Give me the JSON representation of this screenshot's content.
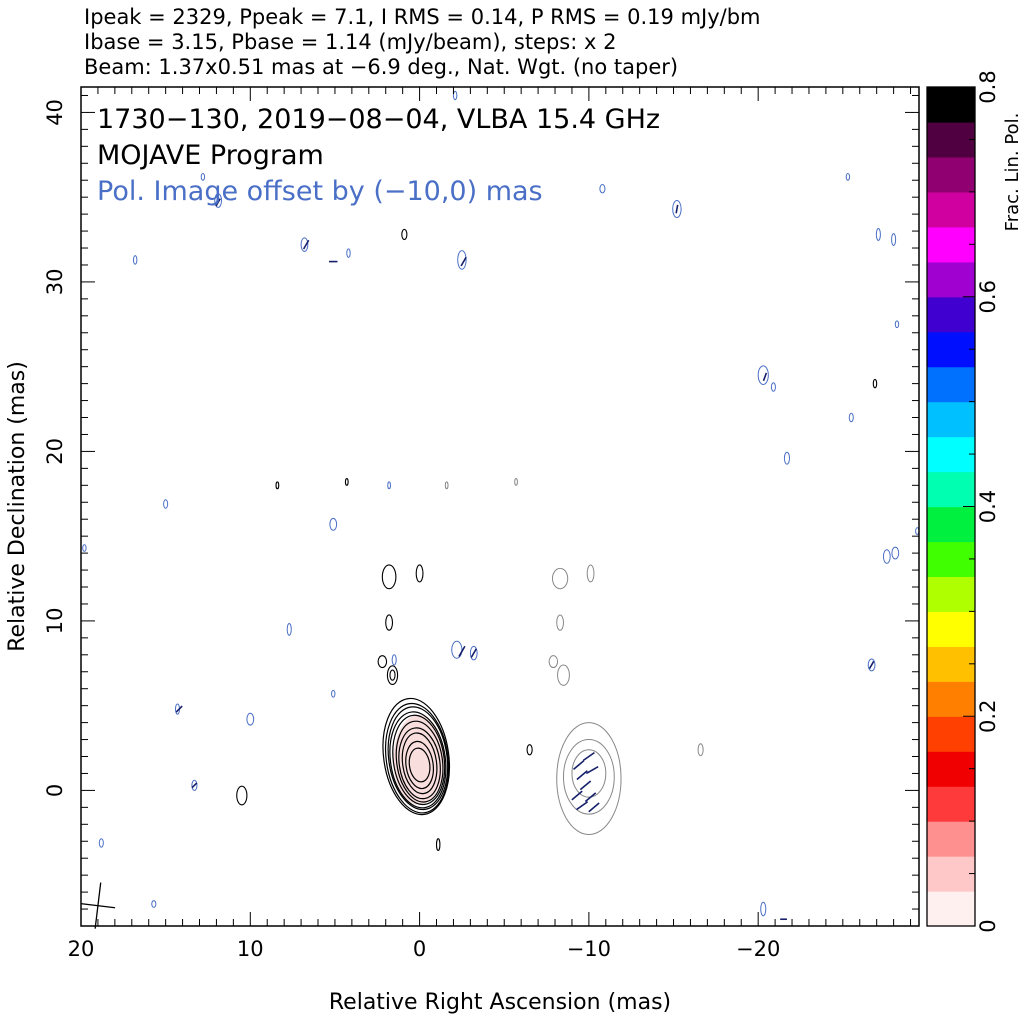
{
  "header": {
    "line1": "Ipeak = 2329, Ppeak = 7.1, I RMS = 0.14, P RMS = 0.19 mJy/bm",
    "line2": "Ibase = 3.15, Pbase = 1.14 (mJy/beam), steps: x 2",
    "line3": "Beam: 1.37x0.51 mas at −6.9 deg., Nat. Wgt. (no taper)"
  },
  "chart_data": {
    "type": "contour",
    "xlabel": "Relative Right Ascension (mas)",
    "ylabel": "Relative Declination (mas)",
    "xlim": [
      20,
      -29.5
    ],
    "ylim": [
      -8,
      41.5
    ],
    "x_ticks": [
      {
        "value": 20,
        "label": "20"
      },
      {
        "value": 10,
        "label": "10"
      },
      {
        "value": 0,
        "label": "0"
      },
      {
        "value": -10,
        "label": "−10"
      },
      {
        "value": -20,
        "label": "−20"
      }
    ],
    "y_ticks": [
      {
        "value": 0,
        "label": "0"
      },
      {
        "value": 10,
        "label": "10"
      },
      {
        "value": 20,
        "label": "20"
      },
      {
        "value": 30,
        "label": "30"
      },
      {
        "value": 40,
        "label": "40"
      }
    ],
    "annotations": [
      {
        "text": "1730−130, 2019−08−04, VLBA 15.4 GHz",
        "color": "#000000"
      },
      {
        "text": "MOJAVE Program",
        "color": "#000000"
      },
      {
        "text": "Pol. Image offset by (−10,0) mas",
        "color": "#4a6fc6"
      }
    ],
    "colorbar": {
      "label": "Frac. Lin. Pol.",
      "range": [
        0,
        0.8
      ],
      "ticks": [
        {
          "value": 0,
          "label": "0"
        },
        {
          "value": 0.2,
          "label": "0.2"
        },
        {
          "value": 0.4,
          "label": "0.4"
        },
        {
          "value": 0.6,
          "label": "0.6"
        },
        {
          "value": 0.8,
          "label": "0.8"
        }
      ],
      "colors": [
        "#fff0f0",
        "#ffc8c8",
        "#ff9090",
        "#ff3a3a",
        "#f00000",
        "#ff4000",
        "#ff8000",
        "#ffc000",
        "#ffff00",
        "#b0ff00",
        "#40ff00",
        "#00f040",
        "#00ffb0",
        "#00ffff",
        "#00c0ff",
        "#0070ff",
        "#0010ff",
        "#4000d0",
        "#a000d0",
        "#ff00ff",
        "#d000a0",
        "#900070",
        "#500040",
        "#000000"
      ]
    },
    "contour_colors": {
      "total_intensity": "#000000",
      "polarized": "#888888",
      "offset_noise": "#4a6fc6"
    },
    "core_contours": [
      {
        "x": 0.0,
        "y": 1.5,
        "rx": 0.6,
        "ry": 1.0,
        "rot": -8
      },
      {
        "x": 0.0,
        "y": 1.5,
        "rx": 0.8,
        "ry": 1.4,
        "rot": -8
      },
      {
        "x": 0.0,
        "y": 1.6,
        "rx": 1.0,
        "ry": 1.8,
        "rot": -8
      },
      {
        "x": 0.0,
        "y": 1.6,
        "rx": 1.2,
        "ry": 2.1,
        "rot": -8
      },
      {
        "x": 0.0,
        "y": 1.7,
        "rx": 1.35,
        "ry": 2.4,
        "rot": -8
      },
      {
        "x": 0.05,
        "y": 1.8,
        "rx": 1.5,
        "ry": 2.65,
        "rot": -8
      },
      {
        "x": 0.1,
        "y": 1.8,
        "rx": 1.62,
        "ry": 2.85,
        "rot": -8
      },
      {
        "x": 0.1,
        "y": 1.9,
        "rx": 1.72,
        "ry": 3.05,
        "rot": -8
      },
      {
        "x": 0.15,
        "y": 1.9,
        "rx": 1.82,
        "ry": 3.25,
        "rot": -8
      },
      {
        "x": 0.2,
        "y": 2.0,
        "rx": 1.92,
        "ry": 3.45,
        "rot": -8
      }
    ],
    "pol_contours": [
      {
        "x": -10.0,
        "y": 1.0,
        "rx": 1.0,
        "ry": 1.4,
        "rot": 0
      },
      {
        "x": -10.0,
        "y": 0.8,
        "rx": 1.5,
        "ry": 2.2,
        "rot": 0
      },
      {
        "x": -10.0,
        "y": 0.7,
        "rx": 1.9,
        "ry": 3.3,
        "rot": 0
      }
    ],
    "black_blobs": [
      {
        "x": 1.8,
        "y": 12.6,
        "rx": 0.4,
        "ry": 0.7
      },
      {
        "x": 0.0,
        "y": 12.8,
        "rx": 0.2,
        "ry": 0.5
      },
      {
        "x": 1.8,
        "y": 9.9,
        "rx": 0.2,
        "ry": 0.45
      },
      {
        "x": 2.2,
        "y": 7.6,
        "rx": 0.25,
        "ry": 0.35
      },
      {
        "x": 1.6,
        "y": 6.8,
        "rx": 0.3,
        "ry": 0.55
      },
      {
        "x": 1.6,
        "y": 6.8,
        "rx": 0.15,
        "ry": 0.3
      },
      {
        "x": 10.5,
        "y": -0.3,
        "rx": 0.3,
        "ry": 0.55
      },
      {
        "x": -6.5,
        "y": 2.4,
        "rx": 0.15,
        "ry": 0.3
      },
      {
        "x": 8.4,
        "y": 18.0,
        "rx": 0.08,
        "ry": 0.2
      },
      {
        "x": 4.3,
        "y": 18.2,
        "rx": 0.08,
        "ry": 0.2
      },
      {
        "x": 0.9,
        "y": 32.8,
        "rx": 0.15,
        "ry": 0.3
      },
      {
        "x": -1.1,
        "y": -3.2,
        "rx": 0.1,
        "ry": 0.35
      },
      {
        "x": -26.9,
        "y": 24.0,
        "rx": 0.1,
        "ry": 0.25
      }
    ],
    "grey_blobs": [
      {
        "x": -8.3,
        "y": 12.5,
        "rx": 0.45,
        "ry": 0.6
      },
      {
        "x": -10.1,
        "y": 12.8,
        "rx": 0.2,
        "ry": 0.5
      },
      {
        "x": -8.3,
        "y": 9.9,
        "rx": 0.2,
        "ry": 0.45
      },
      {
        "x": -7.9,
        "y": 7.6,
        "rx": 0.25,
        "ry": 0.35
      },
      {
        "x": -8.5,
        "y": 6.8,
        "rx": 0.35,
        "ry": 0.6
      },
      {
        "x": -16.6,
        "y": 2.4,
        "rx": 0.15,
        "ry": 0.35
      },
      {
        "x": -1.6,
        "y": 18.0,
        "rx": 0.08,
        "ry": 0.2
      },
      {
        "x": -5.7,
        "y": 18.2,
        "rx": 0.08,
        "ry": 0.2
      }
    ],
    "blue_blobs": [
      {
        "x": 19.8,
        "y": 14.3,
        "rx": 0.1,
        "ry": 0.2
      },
      {
        "x": 16.8,
        "y": 31.3,
        "rx": 0.1,
        "ry": 0.25
      },
      {
        "x": 15.0,
        "y": 16.9,
        "rx": 0.12,
        "ry": 0.25
      },
      {
        "x": 12.8,
        "y": 36.2,
        "rx": 0.1,
        "ry": 0.2
      },
      {
        "x": 11.9,
        "y": 34.8,
        "rx": 0.2,
        "ry": 0.4
      },
      {
        "x": 7.7,
        "y": 9.5,
        "rx": 0.12,
        "ry": 0.35
      },
      {
        "x": 6.8,
        "y": 32.2,
        "rx": 0.2,
        "ry": 0.4
      },
      {
        "x": 4.2,
        "y": 31.7,
        "rx": 0.1,
        "ry": 0.25
      },
      {
        "x": 5.1,
        "y": 15.7,
        "rx": 0.2,
        "ry": 0.35
      },
      {
        "x": 5.1,
        "y": 5.7,
        "rx": 0.1,
        "ry": 0.2
      },
      {
        "x": -2.2,
        "y": 8.3,
        "rx": 0.3,
        "ry": 0.5
      },
      {
        "x": -3.2,
        "y": 8.1,
        "rx": 0.2,
        "ry": 0.4
      },
      {
        "x": -2.5,
        "y": 31.3,
        "rx": 0.25,
        "ry": 0.55
      },
      {
        "x": -2.1,
        "y": 41.0,
        "rx": 0.1,
        "ry": 0.25
      },
      {
        "x": 1.5,
        "y": 7.7,
        "rx": 0.12,
        "ry": 0.3
      },
      {
        "x": -15.2,
        "y": 34.3,
        "rx": 0.25,
        "ry": 0.5
      },
      {
        "x": -10.8,
        "y": 35.5,
        "rx": 0.15,
        "ry": 0.25
      },
      {
        "x": -20.3,
        "y": 24.5,
        "rx": 0.3,
        "ry": 0.55
      },
      {
        "x": -20.9,
        "y": 23.8,
        "rx": 0.12,
        "ry": 0.25
      },
      {
        "x": -21.7,
        "y": 19.6,
        "rx": 0.15,
        "ry": 0.35
      },
      {
        "x": -25.5,
        "y": 22.0,
        "rx": 0.12,
        "ry": 0.25
      },
      {
        "x": -25.3,
        "y": 36.2,
        "rx": 0.1,
        "ry": 0.2
      },
      {
        "x": -27.1,
        "y": 32.8,
        "rx": 0.12,
        "ry": 0.35
      },
      {
        "x": -28.0,
        "y": 32.5,
        "rx": 0.12,
        "ry": 0.35
      },
      {
        "x": -28.2,
        "y": 27.5,
        "rx": 0.1,
        "ry": 0.2
      },
      {
        "x": -27.6,
        "y": 13.8,
        "rx": 0.2,
        "ry": 0.4
      },
      {
        "x": -28.1,
        "y": 14.0,
        "rx": 0.2,
        "ry": 0.35
      },
      {
        "x": -26.7,
        "y": 7.4,
        "rx": 0.2,
        "ry": 0.35
      },
      {
        "x": -29.4,
        "y": 15.3,
        "rx": 0.1,
        "ry": 0.2
      },
      {
        "x": -20.3,
        "y": -7.0,
        "rx": 0.15,
        "ry": 0.4
      },
      {
        "x": 14.3,
        "y": 4.8,
        "rx": 0.12,
        "ry": 0.3
      },
      {
        "x": 10.0,
        "y": 4.2,
        "rx": 0.2,
        "ry": 0.35
      },
      {
        "x": 13.3,
        "y": 0.3,
        "rx": 0.15,
        "ry": 0.3
      },
      {
        "x": 18.8,
        "y": -3.1,
        "rx": 0.12,
        "ry": 0.25
      },
      {
        "x": 15.7,
        "y": -6.7,
        "rx": 0.12,
        "ry": 0.2
      },
      {
        "x": 1.8,
        "y": 18.0,
        "rx": 0.08,
        "ry": 0.2
      }
    ],
    "evpa_ticks": [
      {
        "x": -9.4,
        "y": 1.5,
        "angle": 40,
        "len": 0.8
      },
      {
        "x": -9.6,
        "y": 0.9,
        "angle": 40,
        "len": 0.8
      },
      {
        "x": -9.8,
        "y": 0.3,
        "angle": 40,
        "len": 0.8
      },
      {
        "x": -10.1,
        "y": -0.4,
        "angle": 40,
        "len": 0.8
      },
      {
        "x": -10.3,
        "y": -1.0,
        "angle": 40,
        "len": 0.8
      },
      {
        "x": -10.2,
        "y": 1.2,
        "angle": 30,
        "len": 0.8
      },
      {
        "x": -10.0,
        "y": 2.0,
        "angle": 35,
        "len": 0.8
      },
      {
        "x": -9.3,
        "y": -0.3,
        "angle": 40,
        "len": 0.8
      },
      {
        "x": -9.6,
        "y": -0.9,
        "angle": 35,
        "len": 0.8
      },
      {
        "x": -2.5,
        "y": 8.2,
        "angle": 60,
        "len": 0.7
      },
      {
        "x": -3.2,
        "y": 8.1,
        "angle": 60,
        "len": 0.6
      },
      {
        "x": 6.7,
        "y": 32.2,
        "angle": 60,
        "len": 0.6
      },
      {
        "x": 11.9,
        "y": 34.7,
        "angle": 60,
        "len": 0.5
      },
      {
        "x": -2.6,
        "y": 31.2,
        "angle": 60,
        "len": 0.6
      },
      {
        "x": -20.4,
        "y": 24.4,
        "angle": 70,
        "len": 0.5
      },
      {
        "x": 5.1,
        "y": 31.2,
        "angle": 0,
        "len": 0.5
      },
      {
        "x": 14.2,
        "y": 4.8,
        "angle": 45,
        "len": 0.5
      },
      {
        "x": 13.3,
        "y": 0.3,
        "angle": 45,
        "len": 0.4
      },
      {
        "x": -21.5,
        "y": -7.6,
        "angle": 0,
        "len": 0.4
      },
      {
        "x": -15.2,
        "y": 34.3,
        "angle": 80,
        "len": 0.5
      },
      {
        "x": -26.7,
        "y": 7.4,
        "angle": 60,
        "len": 0.5
      }
    ],
    "beam_symbol": {
      "x": 19.0,
      "y": -6.8,
      "major": 1.37,
      "minor": 0.51,
      "pa": -6.9
    }
  }
}
